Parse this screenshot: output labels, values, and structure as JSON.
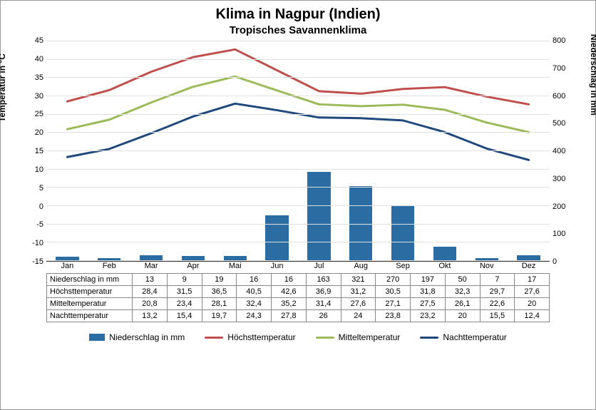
{
  "title": "Klima in Nagpur (Indien)",
  "subtitle": "Tropisches Savannenklima",
  "yaxis_left": {
    "label": "Temperatur in °C",
    "min": -15,
    "max": 45,
    "step": 5
  },
  "yaxis_right": {
    "label": "Niederschlag in mm",
    "min": 0,
    "max": 800,
    "step": 100
  },
  "months": [
    "Jan",
    "Feb",
    "Mar",
    "Apr",
    "Mai",
    "Jun",
    "Jul",
    "Aug",
    "Sep",
    "Okt",
    "Nov",
    "Dez"
  ],
  "rows": [
    {
      "label": "Niederschlag in mm",
      "values": [
        13,
        9,
        19,
        16,
        16,
        163,
        321,
        270,
        197,
        50,
        7,
        17
      ]
    },
    {
      "label": "Höchsttemperatur",
      "values": [
        28.4,
        31.5,
        36.5,
        40.5,
        42.6,
        36.9,
        31.2,
        30.5,
        31.8,
        32.3,
        29.7,
        27.6
      ]
    },
    {
      "label": "Mitteltemperatur",
      "values": [
        20.8,
        23.4,
        28.1,
        32.4,
        35.2,
        31.4,
        27.6,
        27.1,
        27.5,
        26.1,
        22.6,
        20.0
      ]
    },
    {
      "label": "Nachttemperatur",
      "values": [
        13.2,
        15.4,
        19.7,
        24.3,
        27.8,
        26.0,
        24.0,
        23.8,
        23.2,
        20.0,
        15.5,
        12.4
      ]
    }
  ],
  "series": {
    "precipitation": {
      "type": "bar",
      "color": "#2b6ca3",
      "bar_width": 0.55,
      "row_index": 0,
      "axis": "right"
    },
    "high": {
      "type": "line",
      "color": "#c0504d",
      "line_width": 3,
      "row_index": 1,
      "axis": "left"
    },
    "mean": {
      "type": "line",
      "color": "#9bbb59",
      "line_width": 3,
      "row_index": 2,
      "axis": "left"
    },
    "night": {
      "type": "line",
      "color": "#1f497d",
      "line_width": 3,
      "row_index": 3,
      "axis": "left"
    }
  },
  "legend": [
    {
      "kind": "bar",
      "color": "#2b6ca3",
      "label": "Niederschlag in mm"
    },
    {
      "kind": "line",
      "color": "#c0504d",
      "label": "Höchsttemperatur"
    },
    {
      "kind": "line",
      "color": "#9bbb59",
      "label": "Mitteltemperatur"
    },
    {
      "kind": "line",
      "color": "#1f497d",
      "label": "Nachttemperatur"
    }
  ],
  "grid_color": "#e0e0e0",
  "background_color": "#ffffff",
  "decimal_comma": true
}
